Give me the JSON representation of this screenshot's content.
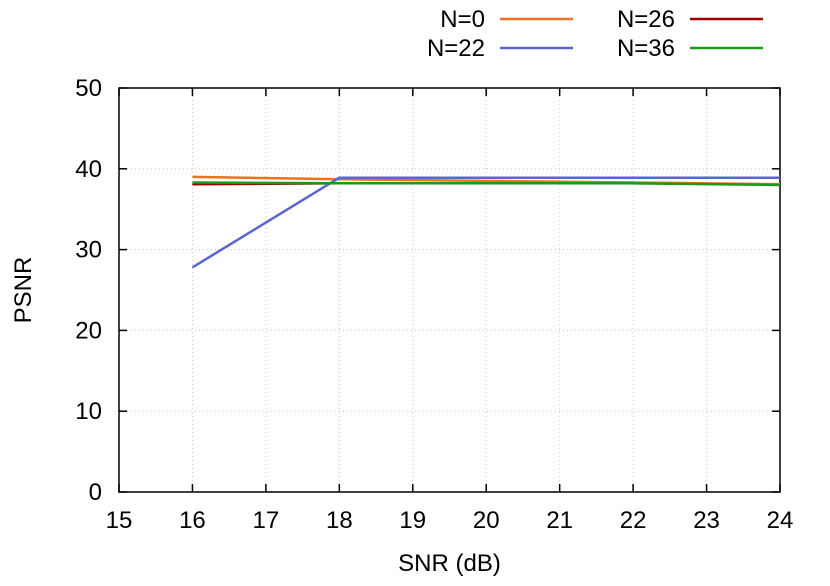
{
  "chart_data": {
    "type": "line",
    "title": "",
    "xlabel": "SNR (dB)",
    "ylabel": "PSNR",
    "xlim": [
      15,
      24
    ],
    "ylim": [
      0,
      50
    ],
    "xticks": [
      15,
      16,
      17,
      18,
      19,
      20,
      21,
      22,
      23,
      24
    ],
    "yticks": [
      0,
      10,
      20,
      30,
      40,
      50
    ],
    "grid": true,
    "legend_position": "top-right, outside plot",
    "series": [
      {
        "name": "N=0",
        "color": "#f07020",
        "x": [
          16,
          18,
          20,
          22,
          24
        ],
        "y": [
          39.0,
          38.7,
          38.5,
          38.3,
          38.1
        ]
      },
      {
        "name": "N=26",
        "color": "#a00000",
        "x": [
          16,
          18,
          20,
          22
        ],
        "y": [
          38.1,
          38.2,
          38.2,
          38.2
        ]
      },
      {
        "name": "N=22",
        "color": "#5a64d2",
        "x": [
          16,
          18,
          20,
          22,
          24
        ],
        "y": [
          27.8,
          38.9,
          38.9,
          38.9,
          38.9
        ]
      },
      {
        "name": "N=36",
        "color": "#1a9a1a",
        "x": [
          16,
          18,
          20,
          22,
          24
        ],
        "y": [
          38.3,
          38.2,
          38.2,
          38.2,
          38.0
        ]
      }
    ]
  }
}
